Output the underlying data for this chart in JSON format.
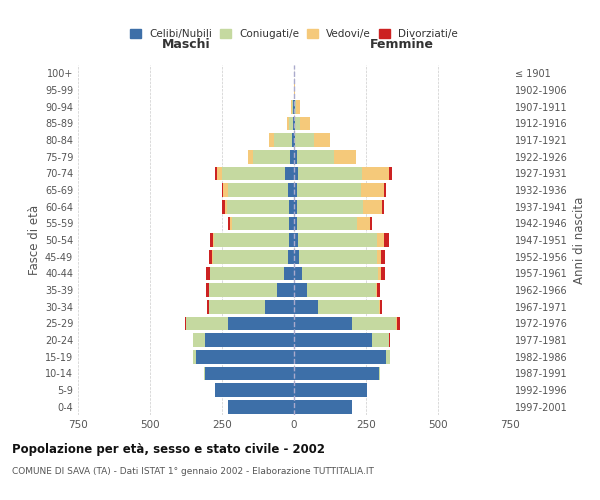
{
  "age_groups": [
    "0-4",
    "5-9",
    "10-14",
    "15-19",
    "20-24",
    "25-29",
    "30-34",
    "35-39",
    "40-44",
    "45-49",
    "50-54",
    "55-59",
    "60-64",
    "65-69",
    "70-74",
    "75-79",
    "80-84",
    "85-89",
    "90-94",
    "95-99",
    "100+"
  ],
  "birth_years": [
    "1997-2001",
    "1992-1996",
    "1987-1991",
    "1982-1986",
    "1977-1981",
    "1972-1976",
    "1967-1971",
    "1962-1966",
    "1957-1961",
    "1952-1956",
    "1947-1951",
    "1942-1946",
    "1937-1941",
    "1932-1936",
    "1927-1931",
    "1922-1926",
    "1917-1921",
    "1912-1916",
    "1907-1911",
    "1902-1906",
    "≤ 1901"
  ],
  "maschi": {
    "celibi": [
      230,
      275,
      310,
      340,
      310,
      230,
      100,
      60,
      35,
      22,
      18,
      16,
      18,
      20,
      30,
      14,
      8,
      3,
      2,
      0,
      0
    ],
    "coniugati": [
      0,
      0,
      2,
      10,
      40,
      145,
      195,
      235,
      255,
      260,
      260,
      200,
      215,
      210,
      220,
      130,
      60,
      15,
      5,
      0,
      0
    ],
    "vedovi": [
      0,
      0,
      0,
      0,
      0,
      0,
      0,
      0,
      2,
      2,
      3,
      5,
      8,
      15,
      18,
      15,
      20,
      8,
      2,
      0,
      0
    ],
    "divorziati": [
      0,
      0,
      0,
      0,
      2,
      5,
      8,
      10,
      12,
      12,
      12,
      8,
      8,
      5,
      5,
      0,
      0,
      0,
      0,
      0,
      0
    ]
  },
  "femmine": {
    "nubili": [
      200,
      255,
      295,
      320,
      270,
      200,
      85,
      45,
      28,
      18,
      14,
      10,
      10,
      12,
      15,
      10,
      5,
      4,
      2,
      0,
      0
    ],
    "coniugate": [
      0,
      0,
      3,
      12,
      60,
      155,
      210,
      240,
      265,
      270,
      275,
      210,
      230,
      220,
      220,
      130,
      65,
      18,
      5,
      0,
      0
    ],
    "vedove": [
      0,
      0,
      0,
      0,
      0,
      2,
      2,
      4,
      8,
      15,
      25,
      45,
      65,
      80,
      95,
      75,
      55,
      35,
      15,
      2,
      0
    ],
    "divorziate": [
      0,
      0,
      0,
      0,
      2,
      12,
      8,
      10,
      14,
      12,
      15,
      6,
      8,
      8,
      10,
      2,
      0,
      0,
      0,
      0,
      0
    ]
  },
  "colors": {
    "celibi": "#3d6fa8",
    "coniugati": "#c5d9a0",
    "vedovi": "#f5c97a",
    "divorziati": "#cc2222"
  },
  "xlim": 750,
  "title": "Popolazione per età, sesso e stato civile - 2002",
  "subtitle": "COMUNE DI SAVA (TA) - Dati ISTAT 1° gennaio 2002 - Elaborazione TUTTITALIA.IT",
  "xlabel_left": "Maschi",
  "xlabel_right": "Femmine",
  "ylabel": "Fasce di età",
  "ylabel_right": "Anni di nascita",
  "legend_labels": [
    "Celibi/Nubili",
    "Coniugati/e",
    "Vedovi/e",
    "Divorziati/e"
  ],
  "bg_color": "#ffffff",
  "grid_color": "#cccccc"
}
